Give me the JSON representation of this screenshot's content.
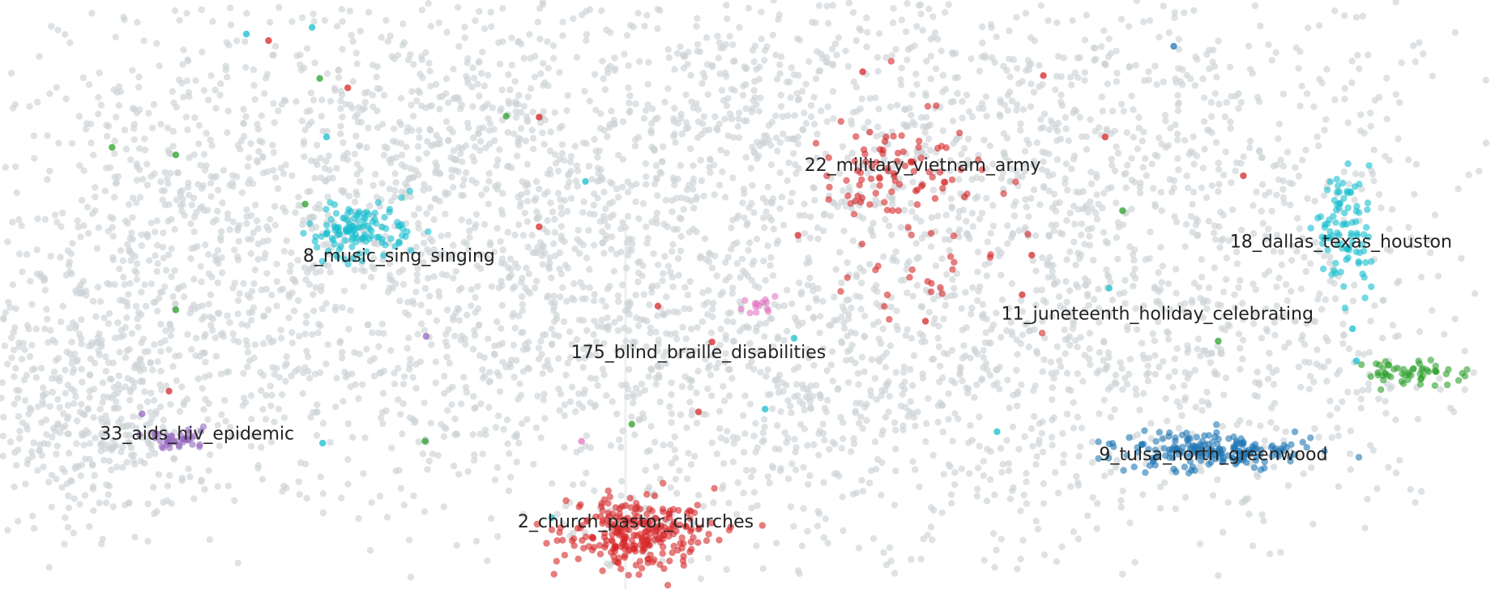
{
  "chart_data": {
    "type": "scatter",
    "title": "",
    "xlabel": "",
    "ylabel": "",
    "xlim": [
      0,
      1540
    ],
    "ylim": [
      0,
      620
    ],
    "grid": false,
    "legend": "none",
    "background_color": "#d7dcdd",
    "seed": 20240607,
    "background_points": {
      "color": "#ccd3d5",
      "opacity": 0.65,
      "count": 5200,
      "regions": [
        {
          "cx": 180,
          "cy": 290,
          "sx": 130,
          "sy": 160,
          "weight": 0.14
        },
        {
          "cx": 430,
          "cy": 150,
          "sx": 200,
          "sy": 120,
          "weight": 0.12
        },
        {
          "cx": 760,
          "cy": 140,
          "sx": 250,
          "sy": 120,
          "weight": 0.16
        },
        {
          "cx": 1150,
          "cy": 170,
          "sx": 220,
          "sy": 140,
          "weight": 0.16
        },
        {
          "cx": 880,
          "cy": 410,
          "sx": 220,
          "sy": 120,
          "weight": 0.16
        },
        {
          "cx": 520,
          "cy": 360,
          "sx": 180,
          "sy": 110,
          "weight": 0.12
        },
        {
          "cx": 1260,
          "cy": 380,
          "sx": 160,
          "sy": 110,
          "weight": 0.08
        },
        {
          "cx": 90,
          "cy": 430,
          "sx": 60,
          "sy": 70,
          "weight": 0.06
        }
      ]
    },
    "clusters": [
      {
        "name": "22_military_vietnam_army",
        "color": "#d62728",
        "count": 90,
        "cx": 930,
        "cy": 185,
        "sx": 45,
        "sy": 30,
        "label_x": 955,
        "label_y": 176
      },
      {
        "name": "8_music_sing_singing",
        "color": "#17becf",
        "count": 120,
        "cx": 375,
        "cy": 243,
        "sx": 28,
        "sy": 15,
        "label_x": 413,
        "label_y": 272
      },
      {
        "name": "18_dallas_texas_houston",
        "color": "#17becf",
        "count": 90,
        "cx": 1392,
        "cy": 250,
        "sx": 14,
        "sy": 30,
        "label_x": 1388,
        "label_y": 257
      },
      {
        "name": "11_juneteenth_holiday_celebrating",
        "color": "#d62728",
        "count": 24,
        "cx": 960,
        "cy": 295,
        "sx": 55,
        "sy": 30,
        "label_x": 1198,
        "label_y": 333
      },
      {
        "name": "175_blind_braille_disabilities",
        "color": "#e377c2",
        "count": 14,
        "cx": 785,
        "cy": 325,
        "sx": 10,
        "sy": 5,
        "label_x": 723,
        "label_y": 374
      },
      {
        "name": "33_aids_hiv_epidemic",
        "color": "#9467bd",
        "count": 40,
        "cx": 185,
        "cy": 465,
        "sx": 18,
        "sy": 5,
        "label_x": 204,
        "label_y": 460
      },
      {
        "name": "9_tulsa_north_greenwood",
        "color": "#1f77b4",
        "count": 190,
        "cx": 1255,
        "cy": 478,
        "sx": 50,
        "sy": 10,
        "label_x": 1256,
        "label_y": 482
      },
      {
        "name": "2_church_pastor_churches",
        "color": "#d62728",
        "count": 260,
        "cx": 658,
        "cy": 565,
        "sx": 40,
        "sy": 18,
        "label_x": 658,
        "label_y": 553
      },
      {
        "name": "",
        "color": "#2ca02c",
        "count": 55,
        "cx": 1460,
        "cy": 395,
        "sx": 25,
        "sy": 6,
        "label_x": null,
        "label_y": null
      }
    ],
    "scattered_points": [
      {
        "x": 255,
        "y": 36,
        "color": "#17becf"
      },
      {
        "x": 278,
        "y": 43,
        "color": "#d62728"
      },
      {
        "x": 323,
        "y": 29,
        "color": "#17becf"
      },
      {
        "x": 331,
        "y": 83,
        "color": "#2ca02c"
      },
      {
        "x": 360,
        "y": 93,
        "color": "#d62728"
      },
      {
        "x": 524,
        "y": 123,
        "color": "#2ca02c"
      },
      {
        "x": 558,
        "y": 124,
        "color": "#d62728"
      },
      {
        "x": 116,
        "y": 156,
        "color": "#2ca02c"
      },
      {
        "x": 182,
        "y": 164,
        "color": "#2ca02c"
      },
      {
        "x": 338,
        "y": 145,
        "color": "#17becf"
      },
      {
        "x": 606,
        "y": 192,
        "color": "#17becf"
      },
      {
        "x": 316,
        "y": 216,
        "color": "#2ca02c"
      },
      {
        "x": 558,
        "y": 240,
        "color": "#d62728"
      },
      {
        "x": 182,
        "y": 328,
        "color": "#2ca02c"
      },
      {
        "x": 441,
        "y": 356,
        "color": "#9467bd"
      },
      {
        "x": 175,
        "y": 414,
        "color": "#d62728"
      },
      {
        "x": 440,
        "y": 467,
        "color": "#2ca02c"
      },
      {
        "x": 334,
        "y": 469,
        "color": "#17becf"
      },
      {
        "x": 654,
        "y": 449,
        "color": "#2ca02c"
      },
      {
        "x": 723,
        "y": 436,
        "color": "#d62728"
      },
      {
        "x": 792,
        "y": 433,
        "color": "#17becf"
      },
      {
        "x": 681,
        "y": 324,
        "color": "#d62728"
      },
      {
        "x": 737,
        "y": 362,
        "color": "#d62728"
      },
      {
        "x": 822,
        "y": 358,
        "color": "#17becf"
      },
      {
        "x": 826,
        "y": 249,
        "color": "#d62728"
      },
      {
        "x": 893,
        "y": 76,
        "color": "#d62728"
      },
      {
        "x": 1080,
        "y": 80,
        "color": "#d62728"
      },
      {
        "x": 1144,
        "y": 145,
        "color": "#d62728"
      },
      {
        "x": 1215,
        "y": 49,
        "color": "#1f77b4"
      },
      {
        "x": 1287,
        "y": 186,
        "color": "#d62728"
      },
      {
        "x": 1162,
        "y": 223,
        "color": "#2ca02c"
      },
      {
        "x": 1148,
        "y": 305,
        "color": "#17becf"
      },
      {
        "x": 1261,
        "y": 361,
        "color": "#2ca02c"
      },
      {
        "x": 1400,
        "y": 348,
        "color": "#17becf"
      },
      {
        "x": 1404,
        "y": 382,
        "color": "#17becf"
      },
      {
        "x": 1032,
        "y": 457,
        "color": "#17becf"
      },
      {
        "x": 1068,
        "y": 270,
        "color": "#d62728"
      },
      {
        "x": 1058,
        "y": 312,
        "color": "#d62728"
      },
      {
        "x": 958,
        "y": 340,
        "color": "#d62728"
      },
      {
        "x": 602,
        "y": 467,
        "color": "#e377c2"
      },
      {
        "x": 571,
        "y": 548,
        "color": "#17becf"
      },
      {
        "x": 147,
        "y": 438,
        "color": "#9467bd"
      }
    ]
  }
}
